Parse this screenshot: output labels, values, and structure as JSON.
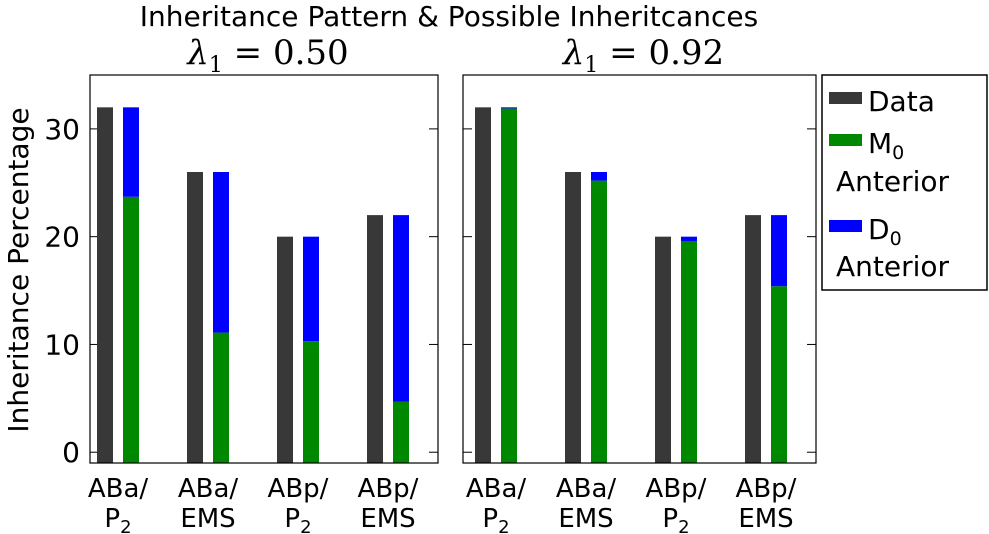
{
  "figure": {
    "title": "Inheritance Pattern & Possible Inheritcances",
    "ylabel": "Inheritance Percentage"
  },
  "colors": {
    "data": "#383838",
    "m0": "#008800",
    "d0": "#0000ff"
  },
  "legend": {
    "placement": "right",
    "items": [
      {
        "key": "data",
        "label": "Data",
        "sub": "",
        "line2": ""
      },
      {
        "key": "m0",
        "label": "M",
        "sub": "0",
        "line2": "Anterior"
      },
      {
        "key": "d0",
        "label": "D",
        "sub": "0",
        "line2": "Anterior"
      }
    ]
  },
  "chart_data": [
    {
      "type": "bar",
      "subtitle_symbol": "λ",
      "subtitle_sub": "1",
      "subtitle_value": "= 0.50",
      "categories": [
        {
          "top": "ABa/",
          "bottom": "P",
          "bottom_sub": "2"
        },
        {
          "top": "ABa/",
          "bottom": "EMS",
          "bottom_sub": ""
        },
        {
          "top": "ABp/",
          "bottom": "P",
          "bottom_sub": "2"
        },
        {
          "top": "ABp/",
          "bottom": "EMS",
          "bottom_sub": ""
        }
      ],
      "yticks": [
        0,
        10,
        20,
        30
      ],
      "ylim": [
        -1,
        35
      ],
      "data_values": [
        32,
        26,
        20,
        22
      ],
      "m0_values": [
        23.7,
        11.1,
        10.3,
        4.7
      ],
      "d0_values": [
        8.3,
        14.9,
        9.7,
        17.3
      ]
    },
    {
      "type": "bar",
      "subtitle_symbol": "λ",
      "subtitle_sub": "1",
      "subtitle_value": "= 0.92",
      "categories": [
        {
          "top": "ABa/",
          "bottom": "P",
          "bottom_sub": "2"
        },
        {
          "top": "ABa/",
          "bottom": "EMS",
          "bottom_sub": ""
        },
        {
          "top": "ABp/",
          "bottom": "P",
          "bottom_sub": "2"
        },
        {
          "top": "ABp/",
          "bottom": "EMS",
          "bottom_sub": ""
        }
      ],
      "yticks": [
        0,
        10,
        20,
        30
      ],
      "ylim": [
        -1,
        35
      ],
      "data_values": [
        32,
        26,
        20,
        22
      ],
      "m0_values": [
        31.9,
        25.2,
        19.6,
        15.4
      ],
      "d0_values": [
        0.1,
        0.8,
        0.4,
        6.6
      ]
    }
  ]
}
